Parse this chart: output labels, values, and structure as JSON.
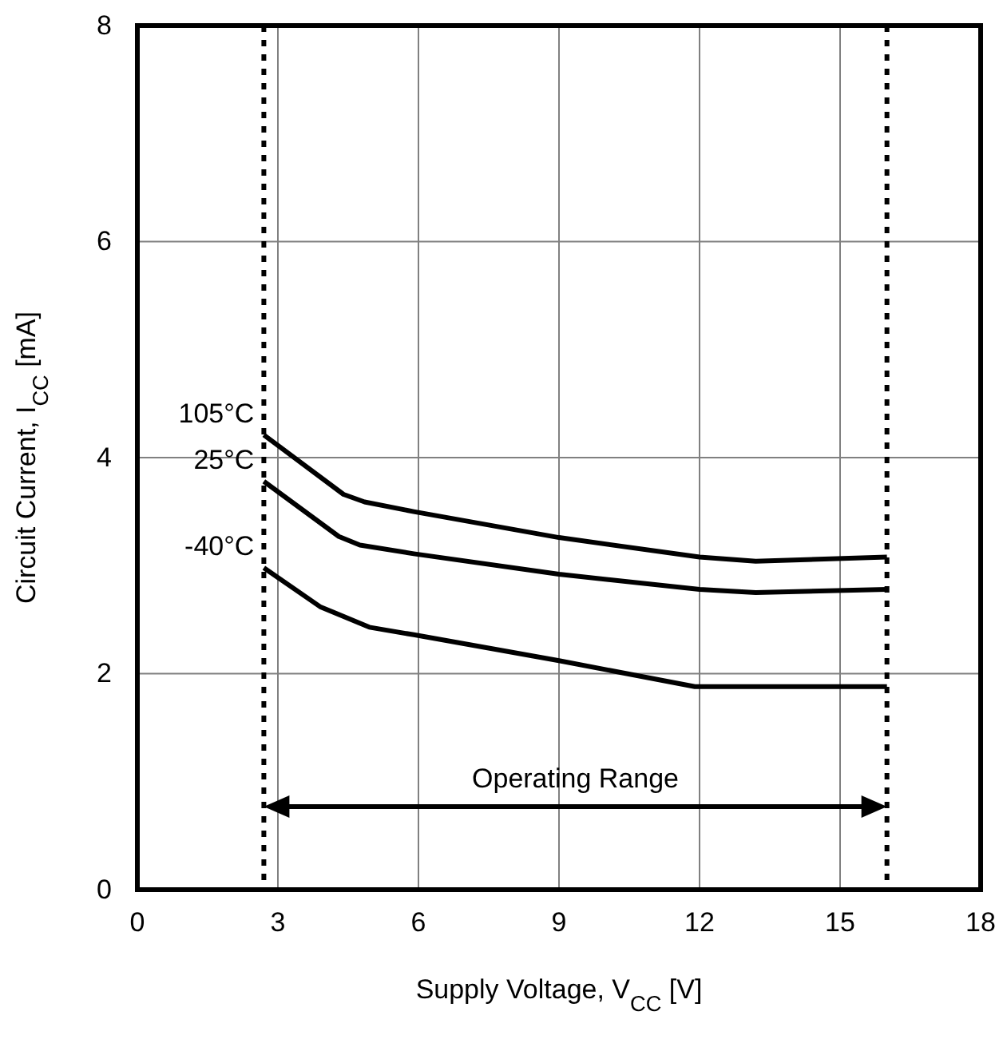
{
  "chart_data": {
    "type": "line",
    "xlabel": "Supply Voltage, V$_{CC}$ [V]",
    "ylabel": "Circuit Current, I$_{CC}$ [mA]",
    "xlim": [
      0,
      18
    ],
    "xticks": [
      0,
      3,
      6,
      9,
      12,
      15,
      18
    ],
    "ylim": [
      0,
      8
    ],
    "yticks": [
      0,
      2,
      4,
      6,
      8
    ],
    "grid": true,
    "legend": false,
    "line_style": "solid",
    "marker": "none",
    "series": [
      {
        "name": "105°C",
        "color": "#000000",
        "x": [
          2.7,
          4.4,
          4.85,
          5.9,
          9,
          12,
          13.2,
          16
        ],
        "values": [
          4.21,
          3.66,
          3.59,
          3.5,
          3.26,
          3.08,
          3.04,
          3.08
        ]
      },
      {
        "name": "25°C",
        "color": "#000000",
        "x": [
          2.7,
          4.3,
          4.75,
          5.9,
          9,
          12,
          13.2,
          16
        ],
        "values": [
          3.78,
          3.27,
          3.19,
          3.11,
          2.92,
          2.78,
          2.75,
          2.78
        ]
      },
      {
        "name": "-40°C",
        "color": "#000000",
        "x": [
          2.7,
          3.9,
          4.95,
          5.9,
          9,
          11.9,
          16
        ],
        "values": [
          2.98,
          2.62,
          2.43,
          2.36,
          2.12,
          1.88,
          1.88
        ]
      }
    ],
    "ref_lines": [
      {
        "axis": "x",
        "value": 2.7,
        "color": "#000000",
        "line_style": "dotted"
      },
      {
        "axis": "x",
        "value": 16,
        "color": "#000000",
        "line_style": "dotted"
      }
    ],
    "annotations": [
      "Operating Range"
    ]
  }
}
